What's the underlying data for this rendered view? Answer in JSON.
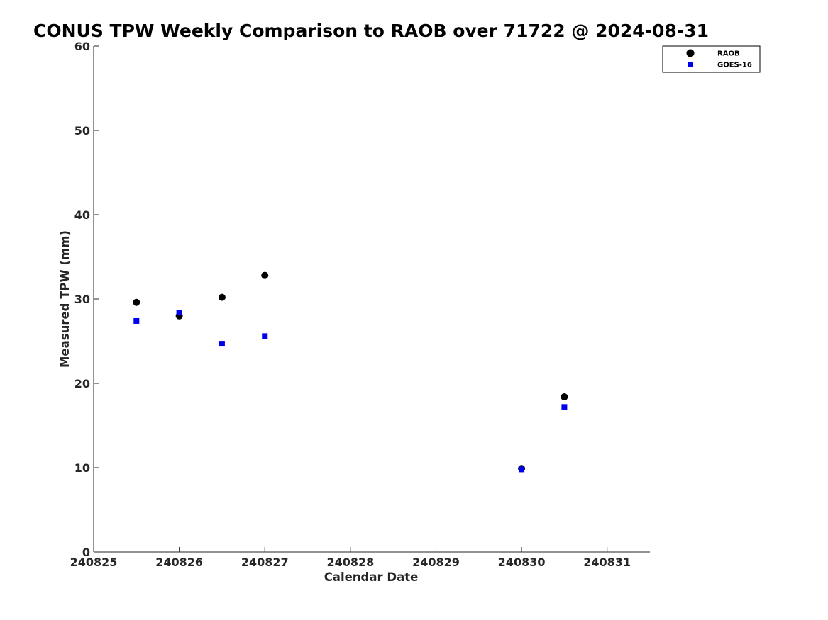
{
  "chart_data": {
    "type": "scatter",
    "title": "CONUS TPW Weekly Comparison to RAOB over 71722 @ 2024-08-31",
    "xlabel": "Calendar Date",
    "ylabel": "Measured TPW (mm)",
    "xlim": [
      240825,
      240831.5
    ],
    "ylim": [
      0,
      60
    ],
    "x_ticks": [
      240825,
      240826,
      240827,
      240828,
      240829,
      240830,
      240831
    ],
    "x_tick_labels": [
      "240825",
      "240826",
      "240827",
      "240828",
      "240829",
      "240830",
      "240831"
    ],
    "y_ticks": [
      0,
      10,
      20,
      30,
      40,
      50,
      60
    ],
    "y_tick_labels": [
      "0",
      "10",
      "20",
      "30",
      "40",
      "50",
      "60"
    ],
    "grid": false,
    "legend_position": "top-right",
    "series": [
      {
        "name": "RAOB",
        "marker": "circle",
        "color": "#000000",
        "points": [
          {
            "x": 240825.5,
            "y": 29.6
          },
          {
            "x": 240826.0,
            "y": 28.0
          },
          {
            "x": 240826.5,
            "y": 30.2
          },
          {
            "x": 240827.0,
            "y": 32.8
          },
          {
            "x": 240830.0,
            "y": 9.9
          },
          {
            "x": 240830.5,
            "y": 18.4
          }
        ]
      },
      {
        "name": "GOES-16",
        "marker": "square",
        "color": "#0000ee",
        "points": [
          {
            "x": 240825.5,
            "y": 27.4
          },
          {
            "x": 240826.0,
            "y": 28.4
          },
          {
            "x": 240826.5,
            "y": 24.7
          },
          {
            "x": 240827.0,
            "y": 25.6
          },
          {
            "x": 240830.0,
            "y": 9.8
          },
          {
            "x": 240830.5,
            "y": 17.2
          }
        ]
      }
    ]
  }
}
